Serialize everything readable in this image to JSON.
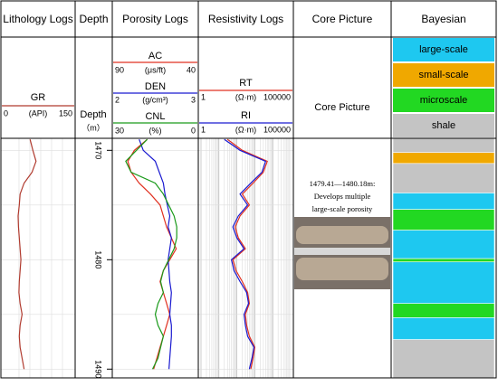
{
  "chart_data": {
    "type": "well-log",
    "headers": [
      "Lithology Logs",
      "Depth",
      "Porosity Logs",
      "Resistivity Logs",
      "Core Picture",
      "Bayesian"
    ],
    "depth": {
      "label": "Depth",
      "unit": "（m）",
      "ylim": [
        1468.9,
        1490.8
      ],
      "yticks": [
        1470,
        1480,
        1490
      ],
      "grid": [
        1470,
        1475,
        1480,
        1485,
        1490
      ]
    },
    "depths": [
      1469,
      1470,
      1471,
      1472,
      1473,
      1474,
      1475,
      1476,
      1477,
      1478,
      1479,
      1480,
      1481,
      1482,
      1483,
      1484,
      1485,
      1486,
      1487,
      1488,
      1489,
      1490
    ],
    "curves": [
      {
        "name": "GR",
        "unit": "(API)",
        "xlim": [
          0,
          150
        ],
        "color": "#b03a2e",
        "track": 0,
        "values": [
          55,
          62,
          70,
          60,
          40,
          30,
          28,
          25,
          26,
          28,
          30,
          32,
          30,
          28,
          27,
          30,
          35,
          30,
          28,
          30,
          35,
          40
        ]
      },
      {
        "name": "AC",
        "unit": "(μs/ft)",
        "xlim": [
          90,
          40
        ],
        "color": "#e03020",
        "track": 2,
        "values": [
          70,
          78,
          82,
          80,
          75,
          68,
          62,
          60,
          58,
          55,
          52,
          56,
          60,
          62,
          60,
          58,
          56,
          58,
          60,
          62,
          64,
          66
        ]
      },
      {
        "name": "DEN",
        "unit": "(g/cm³)",
        "xlim": [
          2,
          3
        ],
        "color": "#1a1ad0",
        "track": 2,
        "values": [
          2.3,
          2.35,
          2.5,
          2.55,
          2.6,
          2.62,
          2.65,
          2.68,
          2.66,
          2.7,
          2.68,
          2.66,
          2.67,
          2.68,
          2.7,
          2.69,
          2.68,
          2.7,
          2.7,
          2.69,
          2.68,
          2.67
        ]
      },
      {
        "name": "CNL",
        "unit": "(%)",
        "xlim": [
          30,
          0
        ],
        "color": "#1a9a1a",
        "track": 2,
        "values": [
          18,
          22,
          26,
          24,
          15,
          12,
          10,
          8,
          7,
          7,
          8,
          10,
          12,
          13,
          12,
          14,
          15,
          14,
          12,
          13,
          14,
          16
        ]
      },
      {
        "name": "RT",
        "unit": "(Ω·m)",
        "xlim": [
          1,
          100000
        ],
        "log": true,
        "color": "#e03020",
        "track": 3,
        "values": [
          30,
          200,
          5000,
          3000,
          800,
          200,
          500,
          150,
          80,
          120,
          300,
          60,
          90,
          200,
          400,
          500,
          300,
          350,
          500,
          1000,
          800,
          600
        ]
      },
      {
        "name": "RI",
        "unit": "(Ω·m)",
        "xlim": [
          1,
          100000
        ],
        "log": true,
        "color": "#1a1ad0",
        "track": 3,
        "values": [
          20,
          150,
          4000,
          2500,
          600,
          150,
          400,
          120,
          60,
          100,
          250,
          50,
          70,
          150,
          350,
          450,
          250,
          300,
          400,
          900,
          700,
          500
        ]
      }
    ],
    "core": {
      "title": "Core Picture",
      "caption": [
        "1479.41—1480.18m:",
        "Develops multiple",
        "large-scale porosity"
      ]
    },
    "bayesian": {
      "classes": [
        {
          "name": "large-scale",
          "color": "#1ec8f0"
        },
        {
          "name": "small-scale",
          "color": "#f0a800"
        },
        {
          "name": "microscale",
          "color": "#22d822"
        },
        {
          "name": "shale",
          "color": "#c4c4c4"
        }
      ],
      "intervals": [
        {
          "top": 1468.9,
          "bottom": 1470.2,
          "class": 3
        },
        {
          "top": 1470.2,
          "bottom": 1471.2,
          "class": 1
        },
        {
          "top": 1471.2,
          "bottom": 1473.9,
          "class": 3
        },
        {
          "top": 1473.9,
          "bottom": 1475.4,
          "class": 0
        },
        {
          "top": 1475.4,
          "bottom": 1477.3,
          "class": 2
        },
        {
          "top": 1477.3,
          "bottom": 1479.9,
          "class": 0
        },
        {
          "top": 1479.9,
          "bottom": 1480.2,
          "class": 2
        },
        {
          "top": 1480.2,
          "bottom": 1484.0,
          "class": 0
        },
        {
          "top": 1484.0,
          "bottom": 1485.3,
          "class": 2
        },
        {
          "top": 1485.3,
          "bottom": 1487.3,
          "class": 0
        },
        {
          "top": 1487.3,
          "bottom": 1490.8,
          "class": 3
        }
      ]
    }
  }
}
